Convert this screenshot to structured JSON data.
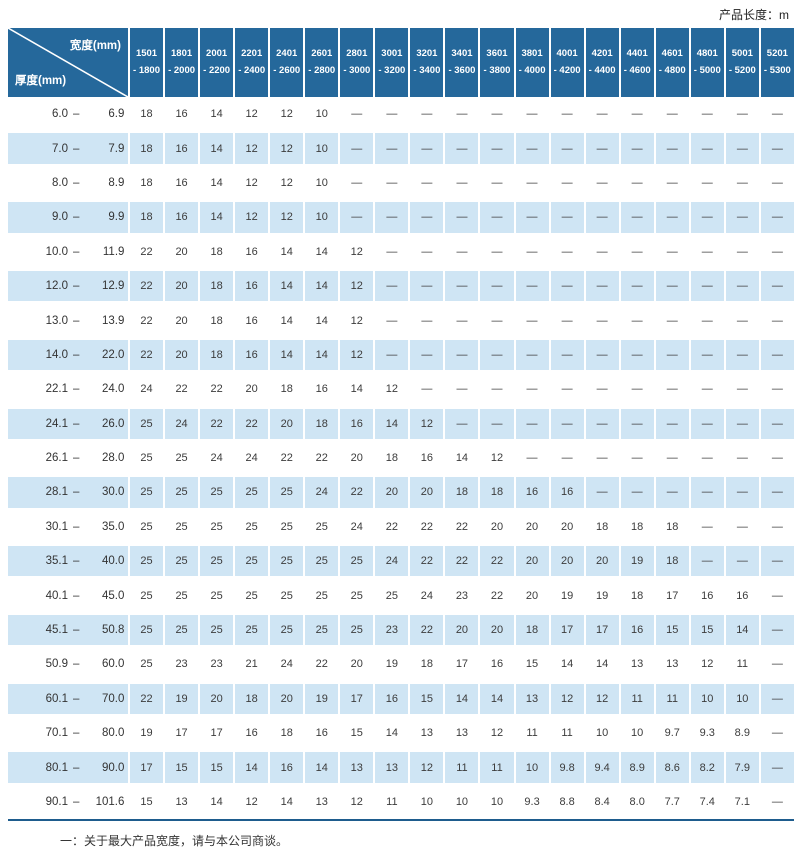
{
  "page": {
    "product_length_label": "产品长度：m"
  },
  "table": {
    "corner": {
      "width_label": "宽度(mm)",
      "thickness_label": "厚度(mm)"
    },
    "range_separator": "–",
    "empty_marker": "—",
    "colors": {
      "header_bg": "#25689b",
      "alt_row_bg": "#cfe5f4",
      "bottom_rule": "#1e5c8d",
      "header_text": "#ffffff",
      "cell_text": "#3c3c3c"
    },
    "columns": [
      {
        "line1": "1501",
        "line2": "- 1800"
      },
      {
        "line1": "1801",
        "line2": "- 2000"
      },
      {
        "line1": "2001",
        "line2": "- 2200"
      },
      {
        "line1": "2201",
        "line2": "- 2400"
      },
      {
        "line1": "2401",
        "line2": "- 2600"
      },
      {
        "line1": "2601",
        "line2": "- 2800"
      },
      {
        "line1": "2801",
        "line2": "- 3000"
      },
      {
        "line1": "3001",
        "line2": "- 3200"
      },
      {
        "line1": "3201",
        "line2": "- 3400"
      },
      {
        "line1": "3401",
        "line2": "- 3600"
      },
      {
        "line1": "3601",
        "line2": "- 3800"
      },
      {
        "line1": "3801",
        "line2": "- 4000"
      },
      {
        "line1": "4001",
        "line2": "- 4200"
      },
      {
        "line1": "4201",
        "line2": "- 4400"
      },
      {
        "line1": "4401",
        "line2": "- 4600"
      },
      {
        "line1": "4601",
        "line2": "- 4800"
      },
      {
        "line1": "4801",
        "line2": "- 5000"
      },
      {
        "line1": "5001",
        "line2": "- 5200"
      },
      {
        "line1": "5201",
        "line2": "- 5300"
      }
    ],
    "rows": [
      {
        "from": "6.0",
        "to": "6.9",
        "values": [
          "18",
          "16",
          "14",
          "12",
          "12",
          "10",
          "—",
          "—",
          "—",
          "—",
          "—",
          "—",
          "—",
          "—",
          "—",
          "—",
          "—",
          "—",
          "—"
        ]
      },
      {
        "from": "7.0",
        "to": "7.9",
        "values": [
          "18",
          "16",
          "14",
          "12",
          "12",
          "10",
          "—",
          "—",
          "—",
          "—",
          "—",
          "—",
          "—",
          "—",
          "—",
          "—",
          "—",
          "—",
          "—"
        ]
      },
      {
        "from": "8.0",
        "to": "8.9",
        "values": [
          "18",
          "16",
          "14",
          "12",
          "12",
          "10",
          "—",
          "—",
          "—",
          "—",
          "—",
          "—",
          "—",
          "—",
          "—",
          "—",
          "—",
          "—",
          "—"
        ]
      },
      {
        "from": "9.0",
        "to": "9.9",
        "values": [
          "18",
          "16",
          "14",
          "12",
          "12",
          "10",
          "—",
          "—",
          "—",
          "—",
          "—",
          "—",
          "—",
          "—",
          "—",
          "—",
          "—",
          "—",
          "—"
        ]
      },
      {
        "from": "10.0",
        "to": "11.9",
        "values": [
          "22",
          "20",
          "18",
          "16",
          "14",
          "14",
          "12",
          "—",
          "—",
          "—",
          "—",
          "—",
          "—",
          "—",
          "—",
          "—",
          "—",
          "—",
          "—"
        ]
      },
      {
        "from": "12.0",
        "to": "12.9",
        "values": [
          "22",
          "20",
          "18",
          "16",
          "14",
          "14",
          "12",
          "—",
          "—",
          "—",
          "—",
          "—",
          "—",
          "—",
          "—",
          "—",
          "—",
          "—",
          "—"
        ]
      },
      {
        "from": "13.0",
        "to": "13.9",
        "values": [
          "22",
          "20",
          "18",
          "16",
          "14",
          "14",
          "12",
          "—",
          "—",
          "—",
          "—",
          "—",
          "—",
          "—",
          "—",
          "—",
          "—",
          "—",
          "—"
        ]
      },
      {
        "from": "14.0",
        "to": "22.0",
        "values": [
          "22",
          "20",
          "18",
          "16",
          "14",
          "14",
          "12",
          "—",
          "—",
          "—",
          "—",
          "—",
          "—",
          "—",
          "—",
          "—",
          "—",
          "—",
          "—"
        ]
      },
      {
        "from": "22.1",
        "to": "24.0",
        "values": [
          "24",
          "22",
          "22",
          "20",
          "18",
          "16",
          "14",
          "12",
          "—",
          "—",
          "—",
          "—",
          "—",
          "—",
          "—",
          "—",
          "—",
          "—",
          "—"
        ]
      },
      {
        "from": "24.1",
        "to": "26.0",
        "values": [
          "25",
          "24",
          "22",
          "22",
          "20",
          "18",
          "16",
          "14",
          "12",
          "—",
          "—",
          "—",
          "—",
          "—",
          "—",
          "—",
          "—",
          "—",
          "—"
        ]
      },
      {
        "from": "26.1",
        "to": "28.0",
        "values": [
          "25",
          "25",
          "24",
          "24",
          "22",
          "22",
          "20",
          "18",
          "16",
          "14",
          "12",
          "—",
          "—",
          "—",
          "—",
          "—",
          "—",
          "—",
          "—"
        ]
      },
      {
        "from": "28.1",
        "to": "30.0",
        "values": [
          "25",
          "25",
          "25",
          "25",
          "25",
          "24",
          "22",
          "20",
          "20",
          "18",
          "18",
          "16",
          "16",
          "—",
          "—",
          "—",
          "—",
          "—",
          "—"
        ]
      },
      {
        "from": "30.1",
        "to": "35.0",
        "values": [
          "25",
          "25",
          "25",
          "25",
          "25",
          "25",
          "24",
          "22",
          "22",
          "22",
          "20",
          "20",
          "20",
          "18",
          "18",
          "18",
          "—",
          "—",
          "—"
        ]
      },
      {
        "from": "35.1",
        "to": "40.0",
        "values": [
          "25",
          "25",
          "25",
          "25",
          "25",
          "25",
          "25",
          "24",
          "22",
          "22",
          "22",
          "20",
          "20",
          "20",
          "19",
          "18",
          "—",
          "—",
          "—"
        ]
      },
      {
        "from": "40.1",
        "to": "45.0",
        "values": [
          "25",
          "25",
          "25",
          "25",
          "25",
          "25",
          "25",
          "25",
          "24",
          "23",
          "22",
          "20",
          "19",
          "19",
          "18",
          "17",
          "16",
          "16",
          "—"
        ]
      },
      {
        "from": "45.1",
        "to": "50.8",
        "values": [
          "25",
          "25",
          "25",
          "25",
          "25",
          "25",
          "25",
          "23",
          "22",
          "20",
          "20",
          "18",
          "17",
          "17",
          "16",
          "15",
          "15",
          "14",
          "—"
        ]
      },
      {
        "from": "50.9",
        "to": "60.0",
        "values": [
          "25",
          "23",
          "23",
          "21",
          "24",
          "22",
          "20",
          "19",
          "18",
          "17",
          "16",
          "15",
          "14",
          "14",
          "13",
          "13",
          "12",
          "11",
          "—"
        ]
      },
      {
        "from": "60.1",
        "to": "70.0",
        "values": [
          "22",
          "19",
          "20",
          "18",
          "20",
          "19",
          "17",
          "16",
          "15",
          "14",
          "14",
          "13",
          "12",
          "12",
          "11",
          "11",
          "10",
          "10",
          "—"
        ]
      },
      {
        "from": "70.1",
        "to": "80.0",
        "values": [
          "19",
          "17",
          "17",
          "16",
          "18",
          "16",
          "15",
          "14",
          "13",
          "13",
          "12",
          "11",
          "11",
          "10",
          "10",
          "9.7",
          "9.3",
          "8.9",
          "—"
        ]
      },
      {
        "from": "80.1",
        "to": "90.0",
        "values": [
          "17",
          "15",
          "15",
          "14",
          "16",
          "14",
          "13",
          "13",
          "12",
          "11",
          "11",
          "10",
          "9.8",
          "9.4",
          "8.9",
          "8.6",
          "8.2",
          "7.9",
          "—"
        ]
      },
      {
        "from": "90.1",
        "to": "101.6",
        "values": [
          "15",
          "13",
          "14",
          "12",
          "14",
          "13",
          "12",
          "11",
          "10",
          "10",
          "10",
          "9.3",
          "8.8",
          "8.4",
          "8.0",
          "7.7",
          "7.4",
          "7.1",
          "—"
        ]
      }
    ]
  },
  "footer": {
    "note": "一：关于最大产品宽度，请与本公司商谈。"
  }
}
